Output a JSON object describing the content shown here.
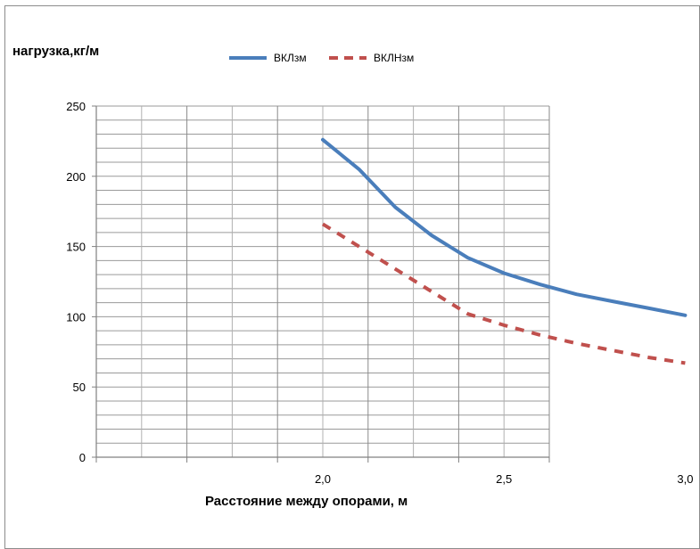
{
  "chart_data": {
    "type": "line",
    "ylabel": "нагрузка,кг/м",
    "xlabel": "Расстояние между опорами, м",
    "ylim": [
      0,
      250
    ],
    "y_ticks": [
      "0",
      "50",
      "100",
      "150",
      "200",
      "250"
    ],
    "x_ticks": [
      "2,0",
      "2,5",
      "3,0"
    ],
    "grid": true,
    "legend_position": "top",
    "series": [
      {
        "name": "ВКЛзм",
        "color": "#4a7ebb",
        "style": "solid",
        "x": [
          2.0,
          2.1,
          2.2,
          2.3,
          2.4,
          2.5,
          2.6,
          2.7,
          2.8,
          2.9,
          3.0
        ],
        "y": [
          226,
          205,
          178,
          158,
          142,
          131,
          123,
          116,
          111,
          106,
          101
        ]
      },
      {
        "name": "ВКЛНзм",
        "color": "#c0504d",
        "style": "dashed",
        "x": [
          2.0,
          2.1,
          2.2,
          2.3,
          2.4,
          2.5,
          2.6,
          2.7,
          2.8,
          2.9,
          3.0
        ],
        "y": [
          166,
          150,
          134,
          118,
          102,
          94,
          87,
          81,
          76,
          71,
          67
        ]
      }
    ]
  }
}
